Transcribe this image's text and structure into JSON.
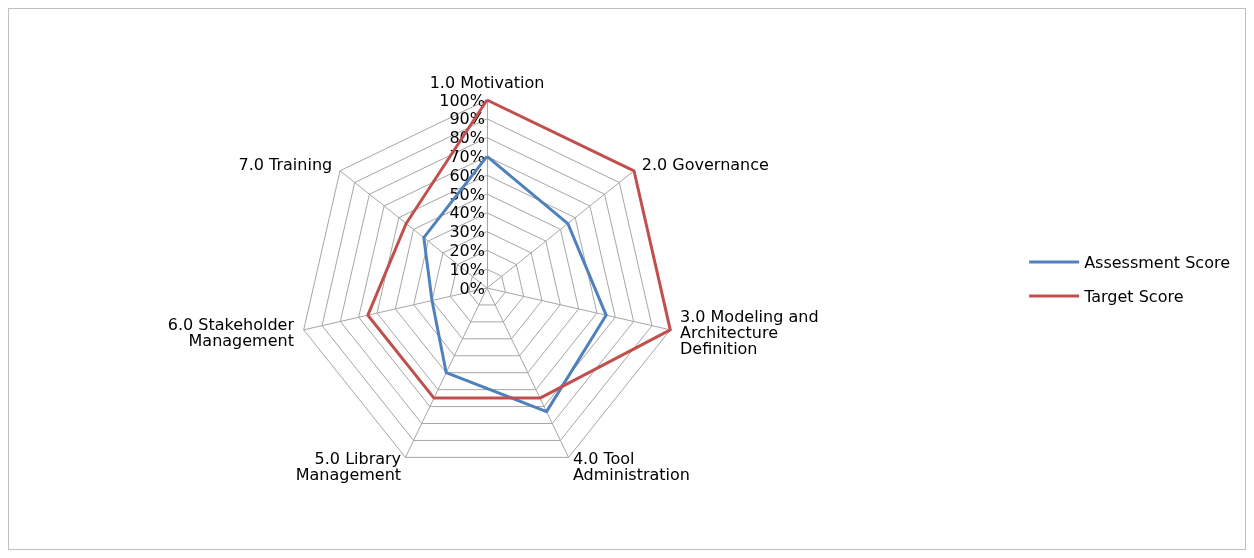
{
  "chart_data": {
    "type": "radar",
    "categories": [
      "1.0 Motivation",
      "2.0 Governance",
      "3.0 Modeling and Architecture Definition",
      "4.0 Tool Administration",
      "5.0 Library Management",
      "6.0 Stakeholder Management",
      "7.0 Training"
    ],
    "series": [
      {
        "name": "Assessment Score",
        "color": "#4f81bd",
        "values": [
          70,
          55,
          65,
          73,
          50,
          30,
          43
        ]
      },
      {
        "name": "Target Score",
        "color": "#c0504d",
        "values": [
          100,
          100,
          100,
          65,
          65,
          65,
          55
        ]
      }
    ],
    "ylim": [
      0,
      100
    ],
    "yticks": [
      {
        "value": 0,
        "label": "0%"
      },
      {
        "value": 10,
        "label": "10%"
      },
      {
        "value": 20,
        "label": "20%"
      },
      {
        "value": 30,
        "label": "30%"
      },
      {
        "value": 40,
        "label": "40%"
      },
      {
        "value": 50,
        "label": "50%"
      },
      {
        "value": 60,
        "label": "60%"
      },
      {
        "value": 70,
        "label": "70%"
      },
      {
        "value": 80,
        "label": "80%"
      },
      {
        "value": 90,
        "label": "90%"
      },
      {
        "value": 100,
        "label": "100%"
      }
    ],
    "grid": true,
    "legend": "right",
    "marker": "none",
    "line_style": "solid"
  }
}
